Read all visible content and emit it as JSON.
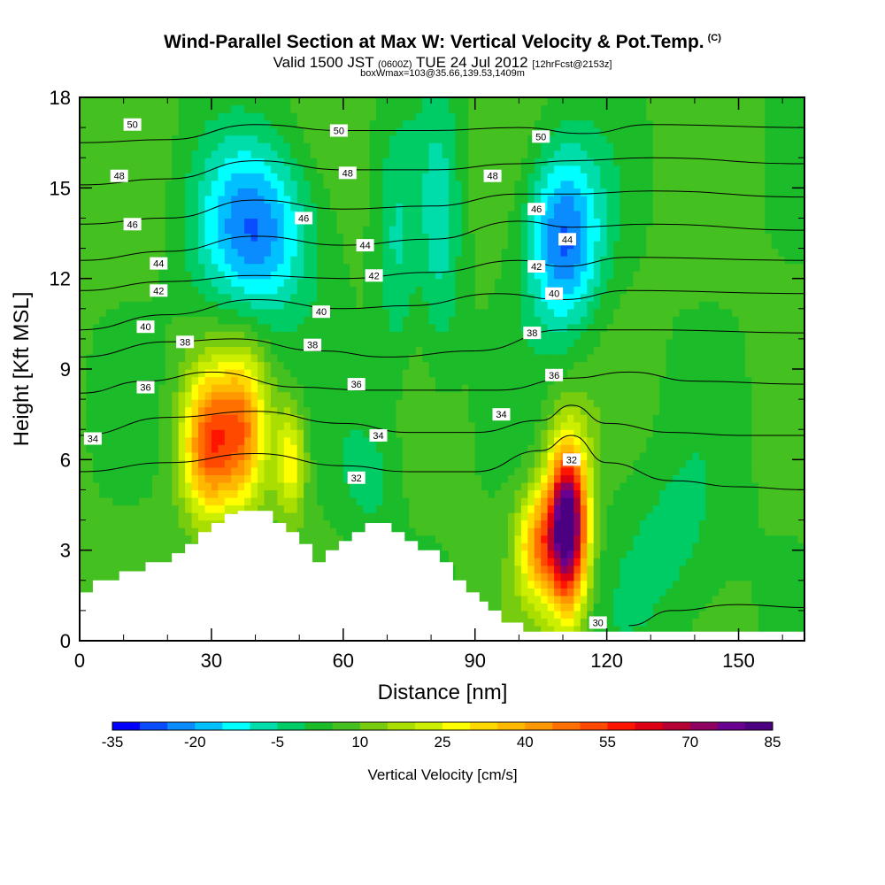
{
  "header": {
    "title": "Wind-Parallel Section at Max W: Vertical Velocity & Pot.Temp.",
    "copyright": "(C)",
    "valid_prefix": "Valid 1500 JST",
    "valid_utc": "(0600Z)",
    "valid_date": "TUE 24 Jul 2012",
    "forecast": "[12hrFcst@2153z]",
    "box_info": "boxWmax=103@35.66,139.53,1409m"
  },
  "chart_data": {
    "type": "heatmap",
    "xlabel": "Distance [nm]",
    "ylabel": "Height [Kft MSL]",
    "xlim": [
      0,
      165
    ],
    "ylim": [
      0,
      18
    ],
    "x_ticks": [
      0,
      30,
      60,
      90,
      120,
      150
    ],
    "y_ticks": [
      0,
      3,
      6,
      9,
      12,
      15,
      18
    ],
    "x_tick_labels": [
      "0",
      "30",
      "60",
      "90",
      "120",
      "150"
    ],
    "y_tick_labels": [
      "0",
      "3",
      "6",
      "9",
      "12",
      "15",
      "18"
    ],
    "colorbar": {
      "label": "Vertical Velocity [cm/s]",
      "ticks": [
        "-35",
        "-20",
        "-5",
        "10",
        "25",
        "40",
        "55",
        "70",
        "85"
      ],
      "min": -35,
      "max": 85,
      "step": 5,
      "colors": [
        "#0000ff",
        "#0a4cff",
        "#0a8cff",
        "#00c0ff",
        "#00ffff",
        "#00ddaa",
        "#00cc66",
        "#1cbb2a",
        "#44c020",
        "#77cc10",
        "#aadd00",
        "#ccee00",
        "#ffff00",
        "#ffd800",
        "#ffb800",
        "#ff9800",
        "#ff7000",
        "#ff4800",
        "#ff1400",
        "#dd0014",
        "#b40032",
        "#900060",
        "#6a0090",
        "#4b0082"
      ]
    },
    "velocity_features": [
      {
        "x": 29,
        "y": 6.5,
        "sx": 4,
        "sy": 1.7,
        "value": 40
      },
      {
        "x": 37,
        "y": 7.0,
        "sx": 4,
        "sy": 1.8,
        "value": 36
      },
      {
        "x": 48,
        "y": 6.0,
        "sx": 2.4,
        "sy": 1.3,
        "value": 24
      },
      {
        "x": 104,
        "y": 3.2,
        "sx": 3.2,
        "sy": 1.3,
        "value": 32
      },
      {
        "x": 111,
        "y": 3.8,
        "sx": 3.2,
        "sy": 1.9,
        "value": 84
      },
      {
        "x": 40,
        "y": 13.6,
        "sx": 9,
        "sy": 2.0,
        "value": -30
      },
      {
        "x": 110,
        "y": 13.3,
        "sx": 6,
        "sy": 2.1,
        "value": -32
      },
      {
        "x": 72,
        "y": 12.5,
        "sx": 3,
        "sy": 3.0,
        "value": -10
      },
      {
        "x": 82,
        "y": 13.5,
        "sx": 3.5,
        "sy": 3.5,
        "value": -12
      },
      {
        "x": 66,
        "y": 5.5,
        "sx": 5,
        "sy": 1.6,
        "value": -8
      },
      {
        "x": 135,
        "y": 3.0,
        "sx": 10,
        "sy": 2.5,
        "value": -8
      }
    ],
    "terrain": [
      [
        0,
        1.6
      ],
      [
        3,
        1.6
      ],
      [
        3,
        2.0
      ],
      [
        9,
        2.0
      ],
      [
        9,
        2.3
      ],
      [
        15,
        2.3
      ],
      [
        15,
        2.6
      ],
      [
        21,
        2.6
      ],
      [
        21,
        2.9
      ],
      [
        24,
        2.9
      ],
      [
        24,
        3.2
      ],
      [
        27,
        3.2
      ],
      [
        27,
        3.6
      ],
      [
        30,
        3.6
      ],
      [
        30,
        3.9
      ],
      [
        33,
        3.9
      ],
      [
        33,
        4.2
      ],
      [
        36,
        4.2
      ],
      [
        36,
        4.3
      ],
      [
        44,
        4.3
      ],
      [
        44,
        3.9
      ],
      [
        47,
        3.9
      ],
      [
        47,
        3.6
      ],
      [
        50,
        3.6
      ],
      [
        50,
        3.2
      ],
      [
        53,
        3.2
      ],
      [
        53,
        2.6
      ],
      [
        56,
        2.6
      ],
      [
        56,
        3.0
      ],
      [
        59,
        3.0
      ],
      [
        59,
        3.3
      ],
      [
        62,
        3.3
      ],
      [
        62,
        3.6
      ],
      [
        65,
        3.6
      ],
      [
        65,
        3.9
      ],
      [
        71,
        3.9
      ],
      [
        71,
        3.6
      ],
      [
        74,
        3.6
      ],
      [
        74,
        3.3
      ],
      [
        77,
        3.3
      ],
      [
        77,
        3.0
      ],
      [
        82,
        3.0
      ],
      [
        82,
        2.6
      ],
      [
        85,
        2.6
      ],
      [
        85,
        2.0
      ],
      [
        88,
        2.0
      ],
      [
        88,
        1.6
      ],
      [
        91,
        1.6
      ],
      [
        91,
        1.3
      ],
      [
        93,
        1.3
      ],
      [
        93,
        1.0
      ],
      [
        96,
        1.0
      ],
      [
        96,
        0.6
      ],
      [
        101,
        0.6
      ],
      [
        101,
        0.3
      ],
      [
        165,
        0.3
      ]
    ],
    "isentropes": [
      {
        "label": "30",
        "points": [
          [
            125,
            0.5
          ],
          [
            135,
            1.0
          ],
          [
            150,
            1.2
          ],
          [
            165,
            1.1
          ]
        ]
      },
      {
        "label": "32",
        "points": [
          [
            0,
            5.6
          ],
          [
            20,
            5.9
          ],
          [
            40,
            6.2
          ],
          [
            60,
            5.8
          ],
          [
            75,
            5.6
          ],
          [
            90,
            5.6
          ],
          [
            105,
            6.3
          ],
          [
            112,
            6.8
          ],
          [
            120,
            5.9
          ],
          [
            135,
            5.3
          ],
          [
            150,
            5.1
          ],
          [
            165,
            5.0
          ]
        ]
      },
      {
        "label": "34",
        "points": [
          [
            0,
            6.8
          ],
          [
            20,
            7.4
          ],
          [
            40,
            7.6
          ],
          [
            60,
            7.2
          ],
          [
            75,
            6.9
          ],
          [
            90,
            6.9
          ],
          [
            105,
            7.3
          ],
          [
            112,
            7.8
          ],
          [
            120,
            7.2
          ],
          [
            135,
            6.9
          ],
          [
            150,
            6.8
          ],
          [
            165,
            6.8
          ]
        ]
      },
      {
        "label": "36",
        "points": [
          [
            0,
            8.2
          ],
          [
            15,
            8.6
          ],
          [
            30,
            8.9
          ],
          [
            50,
            8.4
          ],
          [
            65,
            8.3
          ],
          [
            80,
            8.3
          ],
          [
            95,
            8.3
          ],
          [
            112,
            8.7
          ],
          [
            125,
            8.9
          ],
          [
            140,
            8.6
          ],
          [
            165,
            8.5
          ]
        ]
      },
      {
        "label": "38",
        "points": [
          [
            0,
            9.4
          ],
          [
            20,
            9.9
          ],
          [
            35,
            10.0
          ],
          [
            55,
            9.6
          ],
          [
            70,
            9.4
          ],
          [
            90,
            9.6
          ],
          [
            110,
            10.3
          ],
          [
            130,
            10.3
          ],
          [
            165,
            10.2
          ]
        ]
      },
      {
        "label": "40",
        "points": [
          [
            0,
            10.3
          ],
          [
            20,
            10.8
          ],
          [
            40,
            11.3
          ],
          [
            60,
            11.0
          ],
          [
            75,
            11.1
          ],
          [
            95,
            11.5
          ],
          [
            110,
            11.3
          ],
          [
            125,
            11.6
          ],
          [
            165,
            11.5
          ]
        ]
      },
      {
        "label": "42",
        "points": [
          [
            0,
            11.6
          ],
          [
            20,
            11.9
          ],
          [
            40,
            12.1
          ],
          [
            60,
            12.0
          ],
          [
            80,
            12.2
          ],
          [
            100,
            12.6
          ],
          [
            110,
            12.4
          ],
          [
            125,
            12.7
          ],
          [
            165,
            12.6
          ]
        ]
      },
      {
        "label": "44",
        "points": [
          [
            0,
            12.6
          ],
          [
            20,
            12.9
          ],
          [
            40,
            13.4
          ],
          [
            60,
            13.1
          ],
          [
            80,
            13.3
          ],
          [
            100,
            13.9
          ],
          [
            112,
            13.7
          ],
          [
            130,
            13.8
          ],
          [
            165,
            13.6
          ]
        ]
      },
      {
        "label": "46",
        "points": [
          [
            0,
            13.8
          ],
          [
            20,
            14.0
          ],
          [
            40,
            14.6
          ],
          [
            60,
            14.3
          ],
          [
            80,
            14.4
          ],
          [
            100,
            14.8
          ],
          [
            112,
            14.8
          ],
          [
            130,
            14.9
          ],
          [
            165,
            14.7
          ]
        ]
      },
      {
        "label": "48",
        "points": [
          [
            0,
            15.1
          ],
          [
            20,
            15.3
          ],
          [
            40,
            15.9
          ],
          [
            60,
            15.6
          ],
          [
            80,
            15.6
          ],
          [
            100,
            15.8
          ],
          [
            112,
            15.9
          ],
          [
            130,
            16.0
          ],
          [
            165,
            15.8
          ]
        ]
      },
      {
        "label": "50",
        "points": [
          [
            0,
            16.5
          ],
          [
            20,
            16.6
          ],
          [
            40,
            17.1
          ],
          [
            60,
            16.9
          ],
          [
            80,
            16.9
          ],
          [
            100,
            17.0
          ],
          [
            115,
            16.8
          ],
          [
            130,
            17.1
          ],
          [
            165,
            17.0
          ]
        ]
      }
    ],
    "contour_labels": [
      {
        "text": "50",
        "x": 12,
        "y": 17.1
      },
      {
        "text": "50",
        "x": 59,
        "y": 16.9
      },
      {
        "text": "50",
        "x": 105,
        "y": 16.7
      },
      {
        "text": "48",
        "x": 9,
        "y": 15.4
      },
      {
        "text": "48",
        "x": 61,
        "y": 15.5
      },
      {
        "text": "48",
        "x": 94,
        "y": 15.4
      },
      {
        "text": "46",
        "x": 12,
        "y": 13.8
      },
      {
        "text": "46",
        "x": 51,
        "y": 14.0
      },
      {
        "text": "46",
        "x": 104,
        "y": 14.3
      },
      {
        "text": "44",
        "x": 18,
        "y": 12.5
      },
      {
        "text": "44",
        "x": 65,
        "y": 13.1
      },
      {
        "text": "44",
        "x": 111,
        "y": 13.3
      },
      {
        "text": "42",
        "x": 18,
        "y": 11.6
      },
      {
        "text": "42",
        "x": 67,
        "y": 12.1
      },
      {
        "text": "42",
        "x": 104,
        "y": 12.4
      },
      {
        "text": "40",
        "x": 15,
        "y": 10.4
      },
      {
        "text": "40",
        "x": 55,
        "y": 10.9
      },
      {
        "text": "40",
        "x": 108,
        "y": 11.5
      },
      {
        "text": "38",
        "x": 24,
        "y": 9.9
      },
      {
        "text": "38",
        "x": 53,
        "y": 9.8
      },
      {
        "text": "38",
        "x": 103,
        "y": 10.2
      },
      {
        "text": "36",
        "x": 15,
        "y": 8.4
      },
      {
        "text": "36",
        "x": 63,
        "y": 8.5
      },
      {
        "text": "36",
        "x": 108,
        "y": 8.8
      },
      {
        "text": "34",
        "x": 3,
        "y": 6.7
      },
      {
        "text": "34",
        "x": 68,
        "y": 6.8
      },
      {
        "text": "34",
        "x": 96,
        "y": 7.5
      },
      {
        "text": "32",
        "x": 63,
        "y": 5.4
      },
      {
        "text": "32",
        "x": 112,
        "y": 6.0
      },
      {
        "text": "30",
        "x": 118,
        "y": 0.6
      }
    ]
  }
}
